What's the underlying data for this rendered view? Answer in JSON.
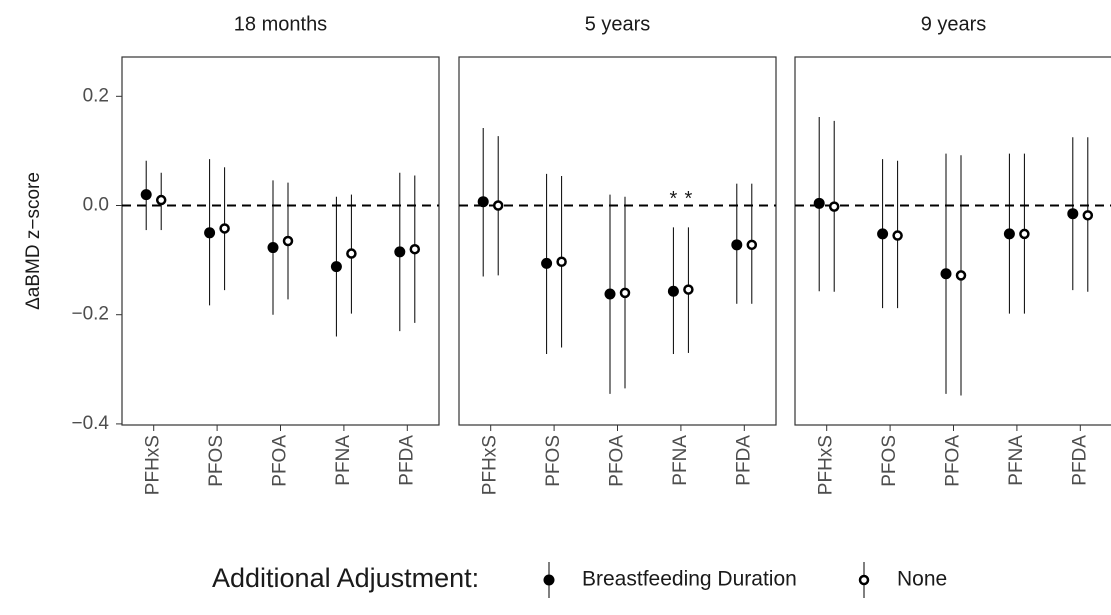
{
  "chart_data": {
    "type": "pointrange",
    "ylabel": "ΔaBMD z−score",
    "categories": [
      "PFHxS",
      "PFOS",
      "PFOA",
      "PFNA",
      "PFDA"
    ],
    "ylim": [
      -0.402,
      0.272
    ],
    "yticks": [
      {
        "value": -0.4,
        "label": "−0.4"
      },
      {
        "value": -0.2,
        "label": "−0.2"
      },
      {
        "value": 0,
        "label": "0.0"
      },
      0.2
    ],
    "reference_line": 0,
    "legend": {
      "title": "Additional Adjustment:",
      "position": "bottom",
      "entries": [
        {
          "name": "Breastfeeding Duration",
          "marker": "filled"
        },
        {
          "name": "None",
          "marker": "open"
        }
      ]
    },
    "panels": [
      {
        "title": "18 months",
        "series": [
          {
            "values": [
              0.02,
              -0.05,
              -0.077,
              -0.112,
              -0.085
            ],
            "lower": [
              -0.045,
              -0.183,
              -0.2,
              -0.24,
              -0.23
            ],
            "upper": [
              0.082,
              0.085,
              0.046,
              0.016,
              0.06
            ]
          },
          {
            "values": [
              0.01,
              -0.042,
              -0.065,
              -0.088,
              -0.08
            ],
            "lower": [
              -0.045,
              -0.155,
              -0.172,
              -0.198,
              -0.215
            ],
            "upper": [
              0.06,
              0.07,
              0.042,
              0.02,
              0.055
            ]
          }
        ]
      },
      {
        "title": "5 years",
        "series": [
          {
            "values": [
              0.007,
              -0.106,
              -0.162,
              -0.157,
              -0.072
            ],
            "lower": [
              -0.13,
              -0.272,
              -0.345,
              -0.272,
              -0.18
            ],
            "upper": [
              0.142,
              0.058,
              0.02,
              -0.04,
              0.04
            ]
          },
          {
            "values": [
              0.0,
              -0.103,
              -0.16,
              -0.154,
              -0.072
            ],
            "lower": [
              -0.128,
              -0.26,
              -0.335,
              -0.27,
              -0.18
            ],
            "upper": [
              0.127,
              0.054,
              0.016,
              -0.04,
              0.04
            ]
          }
        ],
        "annotations": [
          {
            "text": "*",
            "category": 3,
            "series": 0,
            "y": 0.022
          },
          {
            "text": "*",
            "category": 3,
            "series": 1,
            "y": 0.022
          }
        ]
      },
      {
        "title": "9 years",
        "series": [
          {
            "values": [
              0.004,
              -0.052,
              -0.125,
              -0.052,
              -0.015
            ],
            "lower": [
              -0.157,
              -0.188,
              -0.345,
              -0.198,
              -0.155
            ],
            "upper": [
              0.162,
              0.085,
              0.095,
              0.095,
              0.125
            ]
          },
          {
            "values": [
              -0.002,
              -0.055,
              -0.128,
              -0.052,
              -0.018
            ],
            "lower": [
              -0.158,
              -0.188,
              -0.348,
              -0.198,
              -0.158
            ],
            "upper": [
              0.155,
              0.082,
              0.092,
              0.095,
              0.125
            ]
          }
        ]
      }
    ]
  }
}
